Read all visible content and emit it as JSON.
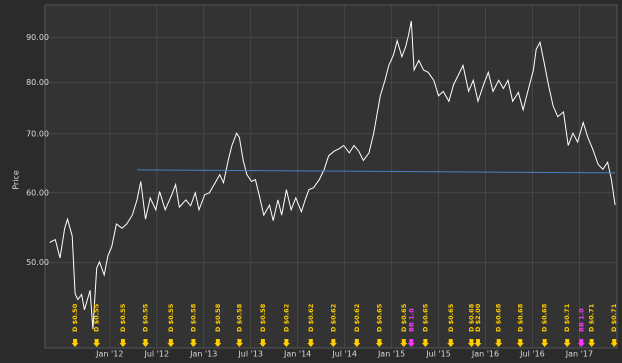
{
  "chart_data": {
    "type": "line",
    "y_label": "Price",
    "log_y": true,
    "grid": true,
    "xlim": [
      2011.31,
      2017.4
    ],
    "ylim": [
      40,
      98
    ],
    "xticks": [
      {
        "value": 2012,
        "label": "Jan '12"
      },
      {
        "value": 2012.5,
        "label": "Jul '12"
      },
      {
        "value": 2013,
        "label": "Jan '13"
      },
      {
        "value": 2013.5,
        "label": "Jul '13"
      },
      {
        "value": 2014,
        "label": "Jan '14"
      },
      {
        "value": 2014.5,
        "label": "Jul '14"
      },
      {
        "value": 2015,
        "label": "Jan '15"
      },
      {
        "value": 2015.5,
        "label": "Jul '15"
      },
      {
        "value": 2016,
        "label": "Jan '16"
      },
      {
        "value": 2016.5,
        "label": "Jul '16"
      },
      {
        "value": 2017,
        "label": "Jan '17"
      }
    ],
    "yticks": [
      {
        "value": 50,
        "label": "50.00"
      },
      {
        "value": 60,
        "label": "60.00"
      },
      {
        "value": 70,
        "label": "70.00"
      },
      {
        "value": 80,
        "label": "80.00"
      },
      {
        "value": 90,
        "label": "90.00"
      }
    ],
    "series": [
      {
        "color": "#ffffff",
        "x": [
          2011.36,
          2011.42,
          2011.47,
          2011.52,
          2011.55,
          2011.6,
          2011.63,
          2011.66,
          2011.7,
          2011.73,
          2011.79,
          2011.82,
          2011.86,
          2011.89,
          2011.94,
          2011.98,
          2012.02,
          2012.07,
          2012.13,
          2012.18,
          2012.24,
          2012.29,
          2012.33,
          2012.38,
          2012.43,
          2012.49,
          2012.53,
          2012.59,
          2012.66,
          2012.7,
          2012.74,
          2012.81,
          2012.86,
          2012.91,
          2012.95,
          2013.01,
          2013.06,
          2013.11,
          2013.17,
          2013.21,
          2013.26,
          2013.3,
          2013.35,
          2013.38,
          2013.42,
          2013.46,
          2013.51,
          2013.55,
          2013.59,
          2013.64,
          2013.7,
          2013.74,
          2013.79,
          2013.83,
          2013.88,
          2013.93,
          2013.98,
          2014.04,
          2014.08,
          2014.12,
          2014.17,
          2014.23,
          2014.28,
          2014.33,
          2014.39,
          2014.44,
          2014.49,
          2014.55,
          2014.6,
          2014.65,
          2014.7,
          2014.76,
          2014.81,
          2014.84,
          2014.88,
          2014.93,
          2014.97,
          2015.02,
          2015.06,
          2015.11,
          2015.15,
          2015.18,
          2015.21,
          2015.24,
          2015.29,
          2015.34,
          2015.39,
          2015.45,
          2015.5,
          2015.55,
          2015.61,
          2015.66,
          2015.71,
          2015.76,
          2015.82,
          2015.87,
          2015.92,
          2015.98,
          2016.03,
          2016.08,
          2016.14,
          2016.19,
          2016.24,
          2016.29,
          2016.35,
          2016.4,
          2016.45,
          2016.51,
          2016.54,
          2016.58,
          2016.62,
          2016.67,
          2016.72,
          2016.77,
          2016.83,
          2016.88,
          2016.93,
          2016.98,
          2017.04,
          2017.09,
          2017.14,
          2017.2,
          2017.25,
          2017.3,
          2017.34,
          2017.38
        ],
        "values": [
          52.7,
          53.1,
          50.6,
          54.7,
          56,
          53.6,
          46.1,
          45.4,
          46,
          44.2,
          46.5,
          42,
          49.3,
          50.1,
          48.4,
          50.9,
          52.1,
          55.3,
          54.7,
          55.3,
          56.6,
          58.9,
          61.8,
          56,
          59.2,
          57.4,
          60.2,
          57.4,
          59.7,
          61.3,
          57.8,
          58.9,
          58,
          60,
          57.4,
          59.7,
          60,
          61.3,
          62.9,
          61.6,
          65.3,
          67.9,
          70.1,
          69.3,
          65.3,
          62.9,
          61.8,
          62.1,
          59.7,
          56.6,
          58.1,
          55.8,
          58.9,
          56.6,
          60.5,
          57.4,
          59.2,
          57.1,
          58.9,
          60.5,
          60.8,
          62.1,
          63.7,
          66.1,
          66.9,
          67.3,
          67.9,
          66.6,
          67.9,
          66.9,
          65.3,
          66.6,
          70.1,
          73.2,
          77.3,
          80.5,
          83.7,
          86,
          89.3,
          85.6,
          87.9,
          90.6,
          94,
          82.7,
          84.8,
          82.7,
          82.2,
          80.5,
          77.3,
          78.2,
          76.2,
          79.6,
          81.6,
          83.7,
          78.2,
          80.5,
          76.2,
          79.6,
          82.2,
          78.2,
          80.5,
          78.8,
          80.5,
          76.2,
          78,
          74.5,
          78.2,
          82.7,
          87.3,
          88.9,
          84.8,
          79.6,
          75.3,
          73.2,
          74.1,
          67.9,
          70.1,
          68.5,
          72.1,
          69.3,
          67.3,
          64.6,
          63.8,
          65,
          62.1,
          58.1
        ]
      },
      {
        "color": "#4a7fc1",
        "x": [
          2012.29,
          2017.38
        ],
        "values": [
          63.7,
          63.2
        ]
      }
    ],
    "events": [
      {
        "x": 2011.63,
        "label": "D $0.50",
        "color": "#ffcc00"
      },
      {
        "x": 2011.86,
        "label": "D $0.55",
        "color": "#ffcc00"
      },
      {
        "x": 2012.14,
        "label": "D $0.55",
        "color": "#ffcc00"
      },
      {
        "x": 2012.38,
        "label": "D $0.55",
        "color": "#ffcc00"
      },
      {
        "x": 2012.65,
        "label": "D $0.55",
        "color": "#ffcc00"
      },
      {
        "x": 2012.89,
        "label": "D $0.58",
        "color": "#ffcc00"
      },
      {
        "x": 2013.15,
        "label": "D $0.58",
        "color": "#ffcc00"
      },
      {
        "x": 2013.38,
        "label": "D $0.58",
        "color": "#ffcc00"
      },
      {
        "x": 2013.63,
        "label": "D $0.58",
        "color": "#ffcc00"
      },
      {
        "x": 2013.88,
        "label": "D $0.62",
        "color": "#ffcc00"
      },
      {
        "x": 2014.14,
        "label": "D $0.62",
        "color": "#ffcc00"
      },
      {
        "x": 2014.38,
        "label": "D $0.62",
        "color": "#ffcc00"
      },
      {
        "x": 2014.63,
        "label": "D $0.62",
        "color": "#ffcc00"
      },
      {
        "x": 2014.87,
        "label": "D $0.65",
        "color": "#ffcc00"
      },
      {
        "x": 2015.13,
        "label": "D $0.65",
        "color": "#ffcc00"
      },
      {
        "x": 2015.21,
        "label": "BB 1.0",
        "color": "#ff33ff"
      },
      {
        "x": 2015.36,
        "label": "D $0.65",
        "color": "#ffcc00"
      },
      {
        "x": 2015.63,
        "label": "D $0.65",
        "color": "#ffcc00"
      },
      {
        "x": 2015.85,
        "label": "D $0.68",
        "color": "#ffcc00"
      },
      {
        "x": 2015.92,
        "label": "D $2.00",
        "color": "#ffcc00"
      },
      {
        "x": 2016.14,
        "label": "D $0.68",
        "color": "#ffcc00"
      },
      {
        "x": 2016.37,
        "label": "D $0.68",
        "color": "#ffcc00"
      },
      {
        "x": 2016.63,
        "label": "D $0.68",
        "color": "#ffcc00"
      },
      {
        "x": 2016.87,
        "label": "D $0.71",
        "color": "#ffcc00"
      },
      {
        "x": 2017.02,
        "label": "BB 1.0",
        "color": "#ff33ff"
      },
      {
        "x": 2017.13,
        "label": "D $0.71",
        "color": "#ffcc00"
      },
      {
        "x": 2017.37,
        "label": "D $0.71",
        "color": "#ffcc00"
      }
    ]
  }
}
